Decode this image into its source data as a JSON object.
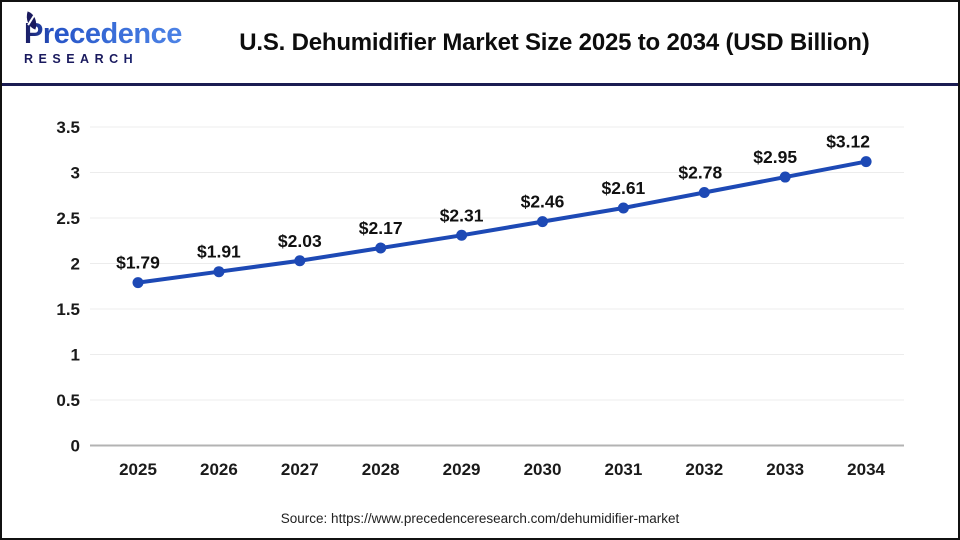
{
  "header": {
    "logo": {
      "name": "Precedence",
      "subname": "RESEARCH",
      "leaf_icon": "leaf-icon",
      "navy": "#1a1a5e",
      "blue": "#2d6ae0"
    },
    "title": "U.S. Dehumidifier Market Size 2025 to 2034 (USD Billion)"
  },
  "chart_data": {
    "type": "line",
    "title": "U.S. Dehumidifier Market Size 2025 to 2034 (USD Billion)",
    "categories": [
      "2025",
      "2026",
      "2027",
      "2028",
      "2029",
      "2030",
      "2031",
      "2032",
      "2033",
      "2034"
    ],
    "values": [
      1.79,
      1.91,
      2.03,
      2.17,
      2.31,
      2.46,
      2.61,
      2.78,
      2.95,
      3.12
    ],
    "data_labels": [
      "$1.79",
      "$1.91",
      "$2.03",
      "$2.17",
      "$2.31",
      "$2.46",
      "$2.61",
      "$2.78",
      "$2.95",
      "$3.12"
    ],
    "xlabel": "",
    "ylabel": "",
    "ylim": [
      0,
      3.5
    ],
    "yticks": [
      0,
      0.5,
      1,
      1.5,
      2,
      2.5,
      3,
      3.5
    ],
    "grid": true,
    "legend": "none",
    "line_color": "#1d49b5",
    "marker_color": "#1d49b5",
    "grid_color": "#ececec",
    "axis_color": "#b3b3b3",
    "label_color": "#111111"
  },
  "footer": {
    "source": "Source: https://www.precedenceresearch.com/dehumidifier-market"
  }
}
